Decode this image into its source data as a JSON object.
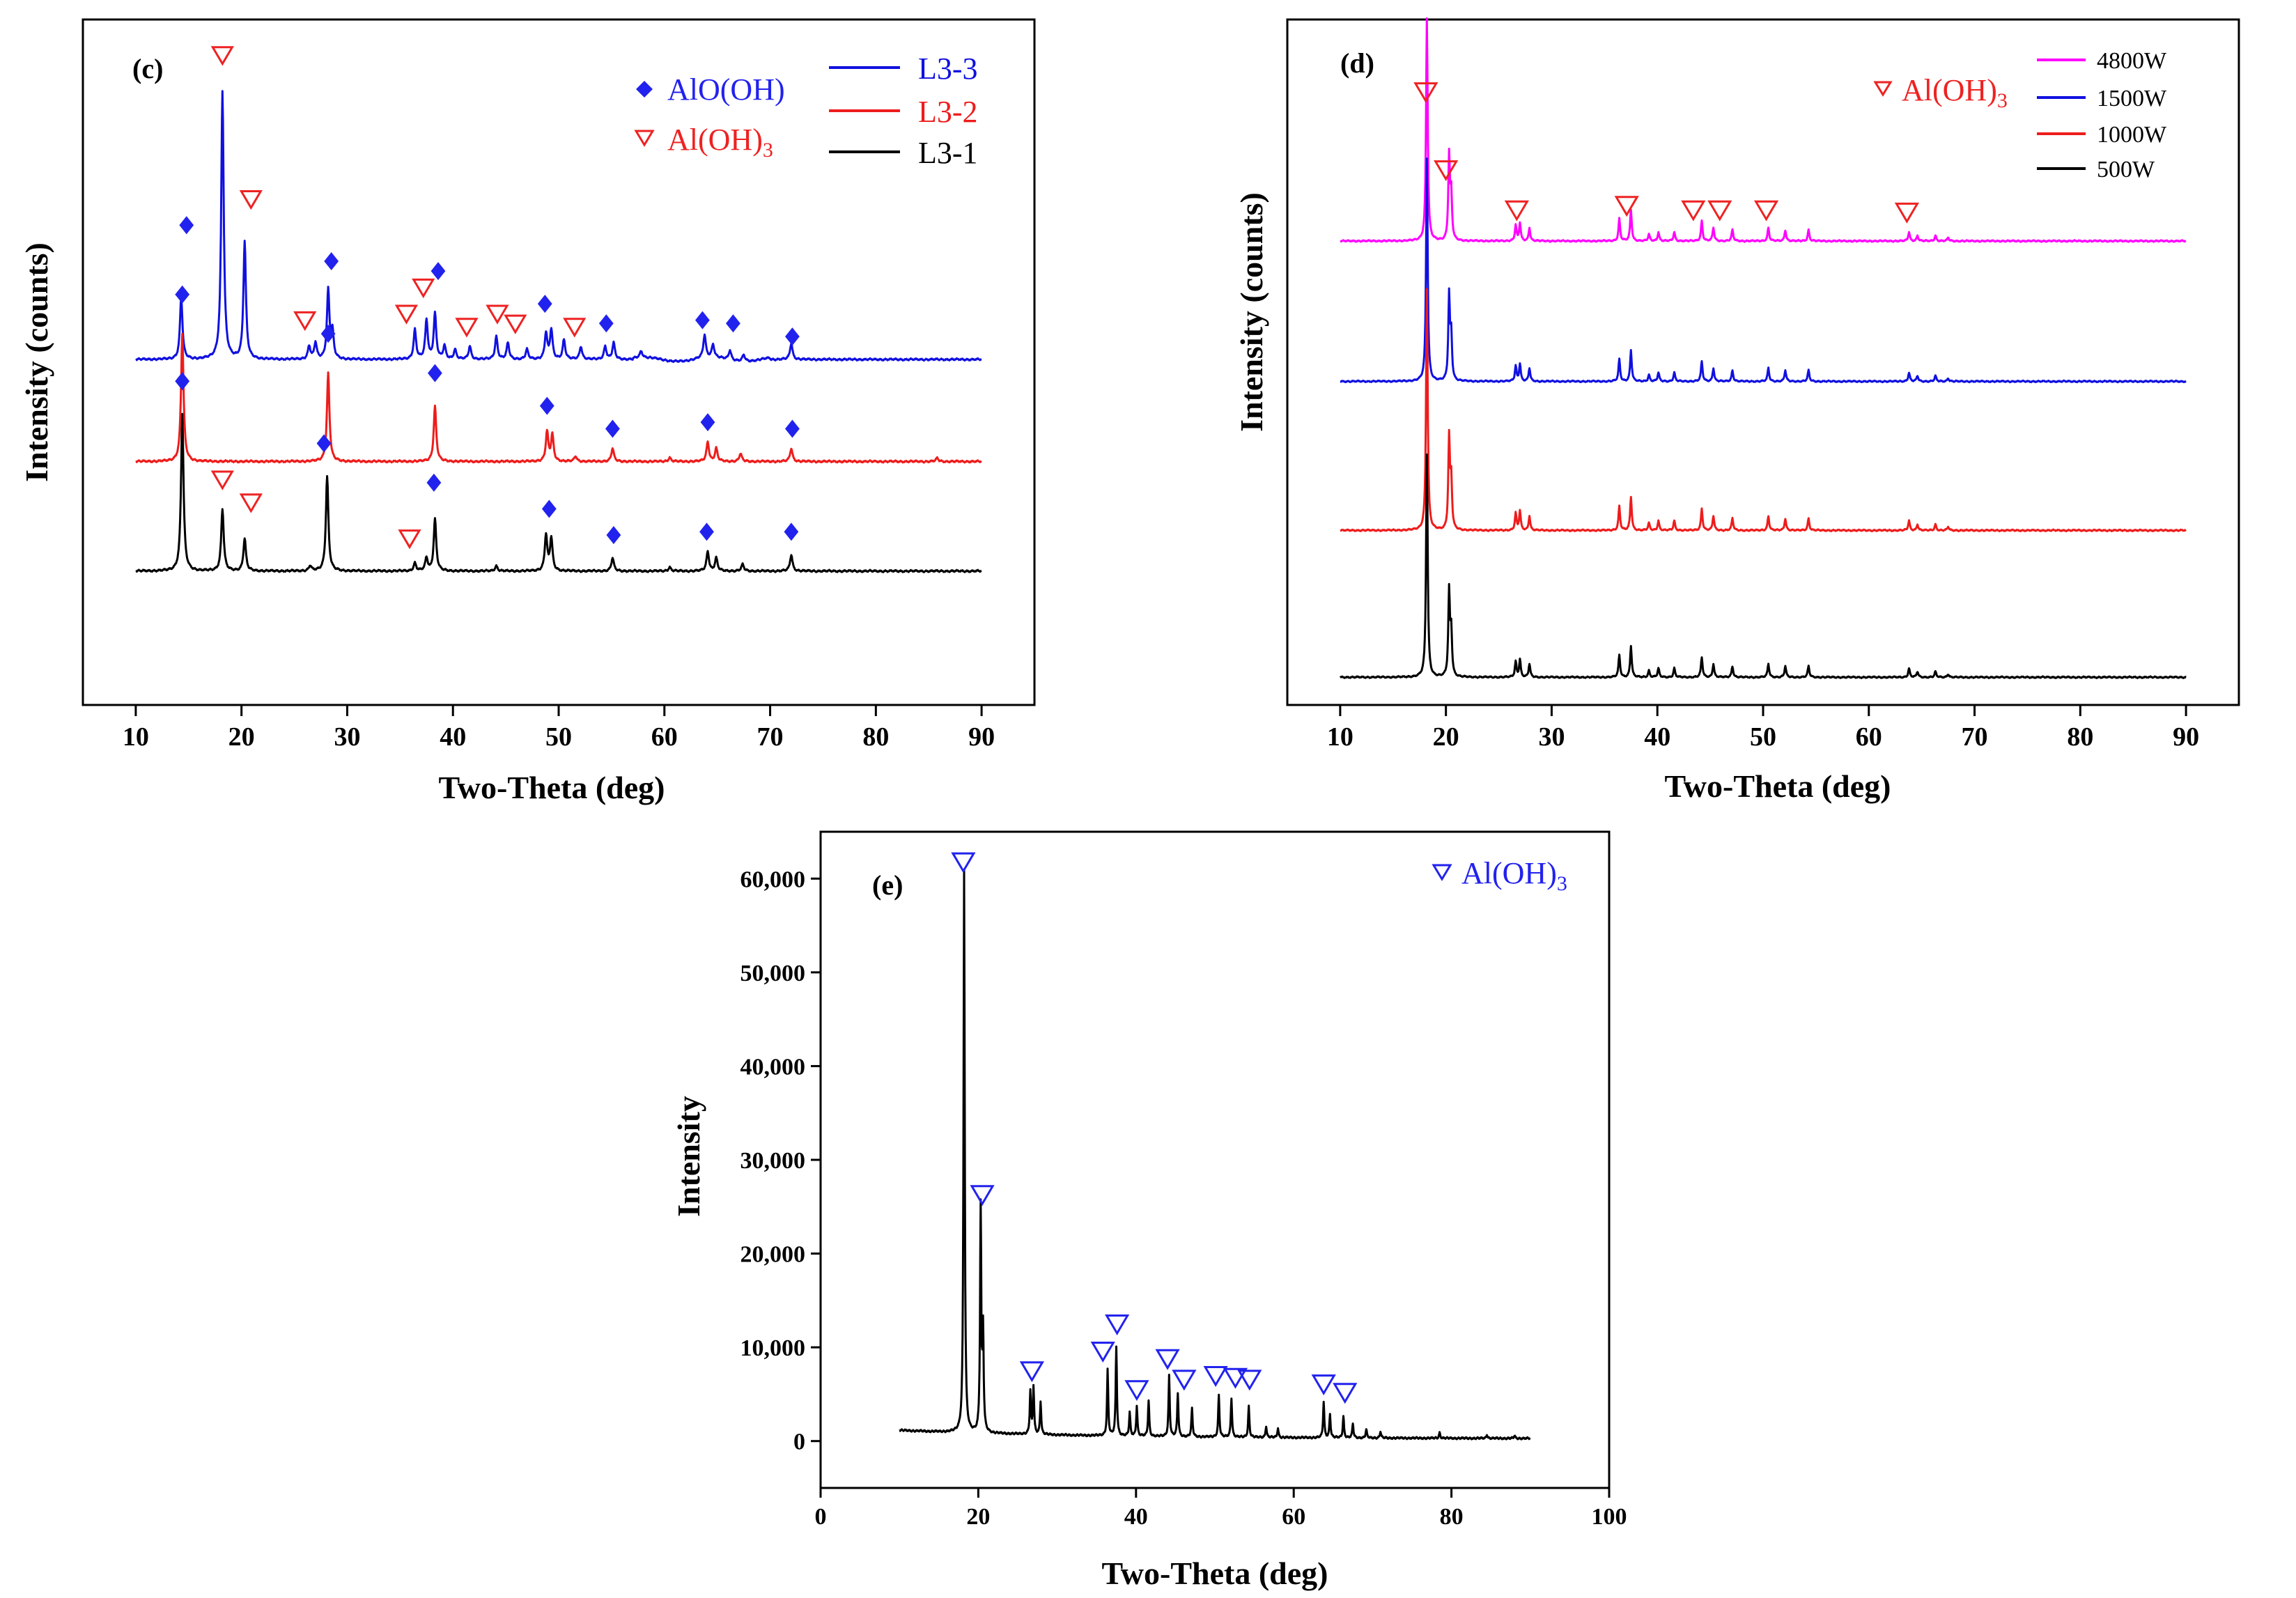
{
  "colors": {
    "blue": "#1010e0",
    "red": "#ee1c1c",
    "black": "#000000",
    "magenta": "#ff00ff",
    "marker_blue": "#2222ee",
    "marker_red": "#ee2222"
  },
  "chart_data": [
    {
      "id": "c",
      "type": "line",
      "panel_label": "(c)",
      "xlabel": "Two-Theta (deg)",
      "ylabel": "Intensity (counts)",
      "xlim": [
        5,
        95
      ],
      "xticks": [
        10,
        20,
        30,
        40,
        50,
        60,
        70,
        80,
        90
      ],
      "y_ticks_shown": false,
      "marker_legend": [
        {
          "symbol": "diamond",
          "label": "AlO(OH)",
          "color": "#2222ee"
        },
        {
          "symbol": "triangle",
          "label": "Al(OH)",
          "sub": "3",
          "color": "#ee2222"
        }
      ],
      "series": [
        {
          "name": "L3-3",
          "color": "#1010e0",
          "baseline": 0.55,
          "scale": 4.1,
          "peaks": [
            [
              14.3,
              0.95
            ],
            [
              18.2,
              4.1
            ],
            [
              20.3,
              1.8
            ],
            [
              26.4,
              0.2
            ],
            [
              27.0,
              0.25
            ],
            [
              28.2,
              1.05
            ],
            [
              28.6,
              0.4
            ],
            [
              36.4,
              0.45
            ],
            [
              37.5,
              0.6
            ],
            [
              38.3,
              0.7
            ],
            [
              39.2,
              0.2
            ],
            [
              40.2,
              0.15
            ],
            [
              41.6,
              0.2
            ],
            [
              44.1,
              0.35
            ],
            [
              45.2,
              0.25
            ],
            [
              47.0,
              0.15
            ],
            [
              48.8,
              0.4
            ],
            [
              49.3,
              0.45
            ],
            [
              50.5,
              0.3
            ],
            [
              52.1,
              0.2
            ],
            [
              54.4,
              0.2
            ],
            [
              55.2,
              0.25
            ],
            [
              57.8,
              0.1
            ],
            [
              63.8,
              0.35
            ],
            [
              64.6,
              0.2
            ],
            [
              66.2,
              0.15
            ],
            [
              67.5,
              0.1
            ],
            [
              72.0,
              0.25
            ]
          ],
          "markers": [
            {
              "type": "diamond",
              "x": 14.8,
              "h": 2.05
            },
            {
              "type": "triangle",
              "x": 18.2,
              "h": 4.65
            },
            {
              "type": "triangle",
              "x": 20.9,
              "h": 2.45
            },
            {
              "type": "triangle",
              "x": 26.0,
              "h": 0.6
            },
            {
              "type": "diamond",
              "x": 28.5,
              "h": 1.5
            },
            {
              "type": "triangle",
              "x": 35.6,
              "h": 0.7
            },
            {
              "type": "triangle",
              "x": 37.2,
              "h": 1.1
            },
            {
              "type": "diamond",
              "x": 38.6,
              "h": 1.35
            },
            {
              "type": "triangle",
              "x": 41.3,
              "h": 0.5
            },
            {
              "type": "triangle",
              "x": 44.2,
              "h": 0.7
            },
            {
              "type": "triangle",
              "x": 45.9,
              "h": 0.55
            },
            {
              "type": "diamond",
              "x": 48.7,
              "h": 0.85
            },
            {
              "type": "triangle",
              "x": 51.5,
              "h": 0.5
            },
            {
              "type": "diamond",
              "x": 54.5,
              "h": 0.55
            },
            {
              "type": "diamond",
              "x": 63.6,
              "h": 0.6
            },
            {
              "type": "diamond",
              "x": 66.5,
              "h": 0.55
            },
            {
              "type": "diamond",
              "x": 72.1,
              "h": 0.35
            }
          ]
        },
        {
          "name": "L3-2",
          "color": "#ee1c1c",
          "baseline": 1.9,
          "scale": 4.1,
          "peaks": [
            [
              14.4,
              1.95
            ],
            [
              28.2,
              1.35
            ],
            [
              38.3,
              0.85
            ],
            [
              48.9,
              0.45
            ],
            [
              49.4,
              0.4
            ],
            [
              51.6,
              0.08
            ],
            [
              55.1,
              0.2
            ],
            [
              60.5,
              0.06
            ],
            [
              64.1,
              0.3
            ],
            [
              64.9,
              0.2
            ],
            [
              67.2,
              0.12
            ],
            [
              72.0,
              0.2
            ],
            [
              85.8,
              0.05
            ]
          ],
          "markers": [
            {
              "type": "diamond",
              "x": 14.4,
              "h": 2.55
            },
            {
              "type": "diamond",
              "x": 28.2,
              "h": 1.95
            },
            {
              "type": "diamond",
              "x": 38.3,
              "h": 1.35
            },
            {
              "type": "diamond",
              "x": 48.9,
              "h": 0.85
            },
            {
              "type": "diamond",
              "x": 55.1,
              "h": 0.5
            },
            {
              "type": "diamond",
              "x": 64.1,
              "h": 0.6
            },
            {
              "type": "diamond",
              "x": 72.1,
              "h": 0.5
            }
          ]
        },
        {
          "name": "L3-1",
          "color": "#000000",
          "baseline": 3.35,
          "scale": 4.1,
          "peaks": [
            [
              14.4,
              2.4
            ],
            [
              18.2,
              0.95
            ],
            [
              20.3,
              0.5
            ],
            [
              26.5,
              0.08
            ],
            [
              28.1,
              1.45
            ],
            [
              36.4,
              0.12
            ],
            [
              37.5,
              0.2
            ],
            [
              38.3,
              0.8
            ],
            [
              44.1,
              0.08
            ],
            [
              48.8,
              0.55
            ],
            [
              49.3,
              0.5
            ],
            [
              55.1,
              0.2
            ],
            [
              60.5,
              0.06
            ],
            [
              64.1,
              0.3
            ],
            [
              64.9,
              0.2
            ],
            [
              67.4,
              0.1
            ],
            [
              72.0,
              0.25
            ]
          ],
          "markers": [
            {
              "type": "diamond",
              "x": 14.4,
              "h": 2.9
            },
            {
              "type": "triangle",
              "x": 18.2,
              "h": 1.4
            },
            {
              "type": "triangle",
              "x": 20.9,
              "h": 1.05
            },
            {
              "type": "diamond",
              "x": 27.8,
              "h": 1.95
            },
            {
              "type": "triangle",
              "x": 35.9,
              "h": 0.5
            },
            {
              "type": "diamond",
              "x": 38.2,
              "h": 1.35
            },
            {
              "type": "diamond",
              "x": 49.1,
              "h": 0.95
            },
            {
              "type": "diamond",
              "x": 55.2,
              "h": 0.55
            },
            {
              "type": "diamond",
              "x": 64.0,
              "h": 0.6
            },
            {
              "type": "diamond",
              "x": 72.0,
              "h": 0.6
            }
          ]
        }
      ]
    },
    {
      "id": "d",
      "type": "line",
      "panel_label": "(d)",
      "xlabel": "Two-Theta (deg)",
      "ylabel": "Intensity (counts)",
      "xlim": [
        5,
        95
      ],
      "xticks": [
        10,
        20,
        30,
        40,
        50,
        60,
        70,
        80,
        90
      ],
      "y_ticks_shown": false,
      "marker_legend": [
        {
          "symbol": "triangle",
          "label": "Al(OH)",
          "sub": "3",
          "color": "#ee2222"
        }
      ],
      "gibbsite_peaks": [
        [
          18.2,
          1.0
        ],
        [
          20.3,
          0.38
        ],
        [
          20.5,
          0.2
        ],
        [
          26.6,
          0.07
        ],
        [
          27.0,
          0.08
        ],
        [
          27.9,
          0.06
        ],
        [
          36.4,
          0.1
        ],
        [
          37.5,
          0.14
        ],
        [
          39.2,
          0.03
        ],
        [
          40.1,
          0.04
        ],
        [
          41.6,
          0.04
        ],
        [
          44.2,
          0.09
        ],
        [
          45.3,
          0.06
        ],
        [
          47.1,
          0.05
        ],
        [
          50.5,
          0.06
        ],
        [
          52.1,
          0.05
        ],
        [
          54.3,
          0.05
        ],
        [
          63.8,
          0.04
        ],
        [
          64.6,
          0.025
        ],
        [
          66.3,
          0.025
        ],
        [
          67.5,
          0.015
        ]
      ],
      "series": [
        {
          "name": "4800W",
          "color": "#ff00ff",
          "baseline": 0.0,
          "scale": 0.6
        },
        {
          "name": "1500W",
          "color": "#1010e0",
          "baseline": 0.65,
          "scale": 0.6
        },
        {
          "name": "1000W",
          "color": "#ee1c1c",
          "baseline": 1.34,
          "scale": 0.65
        },
        {
          "name": "500W",
          "color": "#000000",
          "baseline": 2.02,
          "scale": 0.6
        }
      ],
      "triangle_markers": [
        {
          "x": 18.1,
          "h": 0.67
        },
        {
          "x": 20.0,
          "h": 0.32
        },
        {
          "x": 26.7,
          "h": 0.14
        },
        {
          "x": 37.1,
          "h": 0.16
        },
        {
          "x": 43.4,
          "h": 0.14
        },
        {
          "x": 45.9,
          "h": 0.14
        },
        {
          "x": 50.3,
          "h": 0.14
        },
        {
          "x": 63.6,
          "h": 0.13
        }
      ]
    },
    {
      "id": "e",
      "type": "line",
      "panel_label": "(e)",
      "xlabel": "Two-Theta (deg)",
      "ylabel": "Intensity",
      "xlim": [
        0,
        100
      ],
      "ylim": [
        -5000,
        65000
      ],
      "xticks": [
        0,
        20,
        40,
        60,
        80,
        100
      ],
      "yticks": [
        0,
        10000,
        20000,
        30000,
        40000,
        50000,
        60000
      ],
      "ytick_labels": [
        "0",
        "10,000",
        "20,000",
        "30,000",
        "40,000",
        "50,000",
        "60,000"
      ],
      "marker_legend": [
        {
          "symbol": "triangle",
          "label": "Al(OH)",
          "sub": "3",
          "color": "#2222ee"
        }
      ],
      "series": [
        {
          "name": "Al(OH)3",
          "color": "#000000",
          "peaks": [
            [
              18.2,
              60000
            ],
            [
              20.3,
              24000
            ],
            [
              20.6,
              10500
            ],
            [
              26.6,
              4500
            ],
            [
              27.0,
              5000
            ],
            [
              27.9,
              3500
            ],
            [
              36.4,
              7000
            ],
            [
              37.5,
              9500
            ],
            [
              39.2,
              2500
            ],
            [
              40.1,
              3200
            ],
            [
              41.6,
              3800
            ],
            [
              44.2,
              6500
            ],
            [
              45.3,
              4600
            ],
            [
              47.1,
              3000
            ],
            [
              50.5,
              4500
            ],
            [
              52.1,
              4200
            ],
            [
              54.3,
              3300
            ],
            [
              56.5,
              1200
            ],
            [
              58.0,
              1000
            ],
            [
              63.8,
              3800
            ],
            [
              64.6,
              2500
            ],
            [
              66.3,
              2300
            ],
            [
              67.5,
              1500
            ],
            [
              69.2,
              900
            ],
            [
              71.0,
              700
            ],
            [
              78.5,
              600
            ],
            [
              84.5,
              400
            ],
            [
              88.0,
              300
            ]
          ],
          "markers": [
            {
              "x": 18.1,
              "y": 61800
            },
            {
              "x": 20.5,
              "y": 26300
            },
            {
              "x": 26.8,
              "y": 7500
            },
            {
              "x": 35.8,
              "y": 9600
            },
            {
              "x": 37.6,
              "y": 12500
            },
            {
              "x": 40.1,
              "y": 5500
            },
            {
              "x": 44.0,
              "y": 8800
            },
            {
              "x": 46.1,
              "y": 6600
            },
            {
              "x": 50.1,
              "y": 7000
            },
            {
              "x": 52.6,
              "y": 6800
            },
            {
              "x": 54.4,
              "y": 6600
            },
            {
              "x": 63.8,
              "y": 6100
            },
            {
              "x": 66.5,
              "y": 5200
            }
          ]
        }
      ]
    }
  ]
}
